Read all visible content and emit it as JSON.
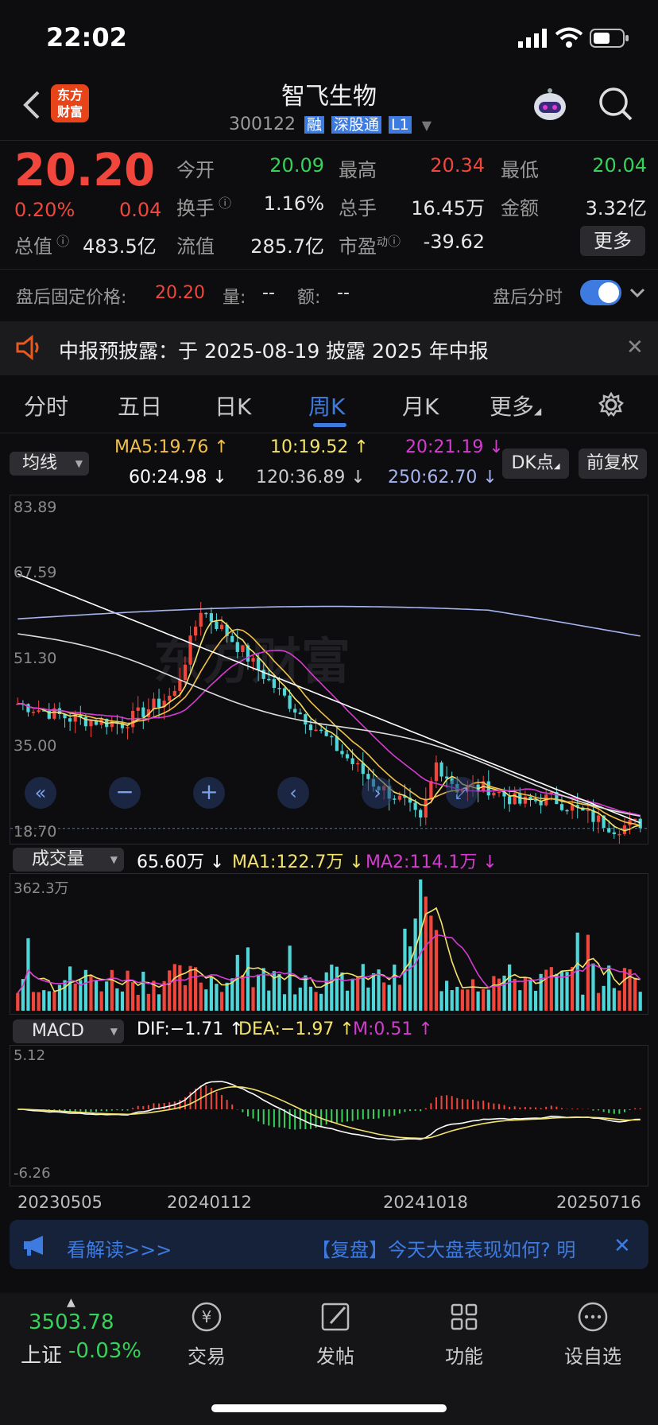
{
  "status_bar": {
    "time": "22:02"
  },
  "header": {
    "back_icon": "chevron-left-icon",
    "logo_line1": "东方",
    "logo_line2": "财富",
    "title": "智飞生物",
    "code": "300122",
    "badges": [
      "融",
      "深股通",
      "L1"
    ],
    "robot_icon": "robot-icon",
    "search_icon": "search-icon"
  },
  "quote": {
    "price": "20.20",
    "change_pct": "0.20%",
    "change": "0.04",
    "open_label": "今开",
    "open": "20.09",
    "high_label": "最高",
    "high": "20.34",
    "low_label": "最低",
    "low": "20.04",
    "turnover_label": "换手",
    "turnover": "1.16%",
    "volume_label": "总手",
    "volume": "16.45万",
    "amount_label": "金额",
    "amount": "3.32亿",
    "mcap_label": "总值",
    "mcap": "483.5亿",
    "float_label": "流值",
    "float_val": "285.7亿",
    "pe_label": "市盈",
    "pe_sup": "动",
    "pe": "-39.62",
    "more_label": "更多"
  },
  "after_hours": {
    "label": "盘后固定价格:",
    "price": "20.20",
    "vol_label": "量:",
    "vol": "--",
    "amt_label": "额:",
    "amt": "--",
    "toggle_label": "盘后分时",
    "toggle_on": true
  },
  "notice": {
    "text": "中报预披露：于 2025-08-19 披露 2025 年中报"
  },
  "tabs": [
    {
      "label": "分时"
    },
    {
      "label": "五日"
    },
    {
      "label": "日K"
    },
    {
      "label": "周K",
      "active": true
    },
    {
      "label": "月K"
    },
    {
      "label": "更多"
    }
  ],
  "ma_row": {
    "selector": "均线",
    "ma5": "MA5:19.76",
    "ma10": "10:19.52",
    "ma20": "20:21.19",
    "ma60": "60:24.98",
    "ma120": "120:36.89",
    "ma250": "250:62.70",
    "dk_label": "DK点",
    "fq_label": "前复权"
  },
  "colors": {
    "up": "#f0463c",
    "down": "#4fd6d8",
    "ma5": "#f3e36a",
    "ma10": "#f0e070",
    "ma20": "#d43cd0",
    "ma60": "#ffffff",
    "ma120": "#ffffff",
    "ma250": "#a8b4f0",
    "accent": "#3d7be0"
  },
  "kline_axis": {
    "y_labels": [
      "83.89",
      "67.59",
      "51.30",
      "35.00",
      "18.70"
    ]
  },
  "volume_row": {
    "selector": "成交量",
    "vol": "65.60万",
    "ma1": "MA1:122.7万",
    "ma2": "MA2:114.1万",
    "axis_max": "362.3万"
  },
  "macd_row": {
    "selector": "MACD",
    "dif": "DIF:−1.71",
    "dea": "DEA:−1.97",
    "m": "M:0.51",
    "axis_top": "5.12",
    "axis_bottom": "-6.26"
  },
  "dates": [
    "20230505",
    "20240112",
    "20241018",
    "20250716"
  ],
  "ticker": {
    "left_text": "看解读>>>",
    "right_text": "【复盘】今天大盘表现如何? 明"
  },
  "bottom_nav": {
    "index_value": "3503.78",
    "index_name": "上证",
    "index_change": "-0.03%",
    "items": [
      {
        "label": "交易",
        "icon": "yen-exchange-icon"
      },
      {
        "label": "发帖",
        "icon": "edit-icon"
      },
      {
        "label": "功能",
        "icon": "grid-icon"
      },
      {
        "label": "设自选",
        "icon": "more-dots-icon"
      }
    ]
  }
}
